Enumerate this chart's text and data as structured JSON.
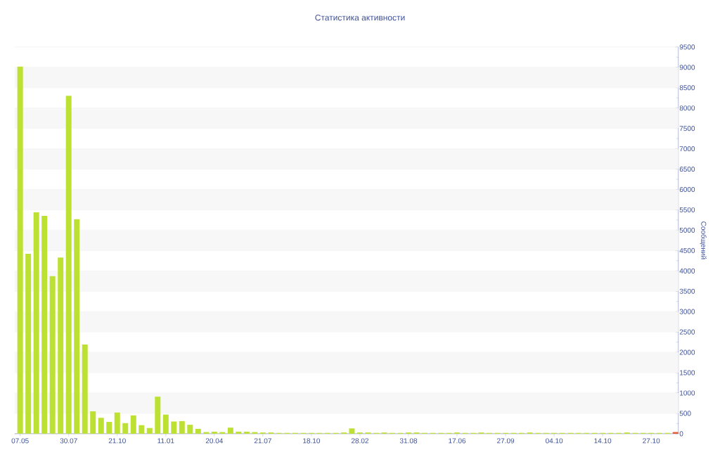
{
  "chart_data": {
    "type": "bar",
    "title": "Статистика активности",
    "ylabel": "Сообщений",
    "categories": [
      "07.05",
      null,
      null,
      null,
      null,
      null,
      "30.07",
      null,
      null,
      null,
      null,
      null,
      "21.10",
      null,
      null,
      null,
      null,
      null,
      "11.01",
      null,
      null,
      null,
      null,
      null,
      "20.04",
      null,
      null,
      null,
      null,
      null,
      "21.07",
      null,
      null,
      null,
      null,
      null,
      "18.10",
      null,
      null,
      null,
      null,
      null,
      "28.02",
      null,
      null,
      null,
      null,
      null,
      "31.08",
      null,
      null,
      null,
      null,
      null,
      "17.06",
      null,
      null,
      null,
      null,
      null,
      "27.09",
      null,
      null,
      null,
      null,
      null,
      "04.10",
      null,
      null,
      null,
      null,
      null,
      "14.10",
      null,
      null,
      null,
      null,
      null,
      "27.10",
      null,
      null,
      null
    ],
    "values": [
      9020,
      4420,
      5440,
      5350,
      3870,
      4330,
      8300,
      5270,
      2190,
      550,
      390,
      290,
      520,
      260,
      450,
      210,
      140,
      910,
      470,
      300,
      310,
      220,
      120,
      40,
      50,
      40,
      150,
      50,
      50,
      40,
      30,
      30,
      20,
      20,
      20,
      20,
      20,
      20,
      20,
      20,
      30,
      130,
      30,
      30,
      20,
      30,
      20,
      20,
      30,
      30,
      20,
      20,
      20,
      20,
      30,
      20,
      20,
      30,
      20,
      20,
      20,
      20,
      20,
      30,
      20,
      20,
      20,
      20,
      20,
      20,
      20,
      20,
      20,
      20,
      20,
      30,
      20,
      20,
      20,
      20,
      20,
      40
    ],
    "colors": [
      "#bde132",
      "#bde132",
      "#bde132",
      "#bde132",
      "#bde132",
      "#bde132",
      "#bde132",
      "#bde132",
      "#bde132",
      "#bde132",
      "#bde132",
      "#bde132",
      "#bde132",
      "#bde132",
      "#bde132",
      "#bde132",
      "#bde132",
      "#bde132",
      "#bde132",
      "#bde132",
      "#bde132",
      "#bde132",
      "#bde132",
      "#bde132",
      "#bde132",
      "#bde132",
      "#bde132",
      "#bde132",
      "#bde132",
      "#bde132",
      "#bde132",
      "#bde132",
      "#bde132",
      "#bde132",
      "#bde132",
      "#bde132",
      "#bde132",
      "#bde132",
      "#bde132",
      "#bde132",
      "#bde132",
      "#bde132",
      "#bde132",
      "#bde132",
      "#bde132",
      "#bde132",
      "#bde132",
      "#bde132",
      "#bde132",
      "#bde132",
      "#bde132",
      "#bde132",
      "#bde132",
      "#bde132",
      "#bde132",
      "#bde132",
      "#bde132",
      "#bde132",
      "#bde132",
      "#bde132",
      "#bde132",
      "#bde132",
      "#bde132",
      "#bde132",
      "#bde132",
      "#bde132",
      "#bde132",
      "#bde132",
      "#bde132",
      "#bde132",
      "#bde132",
      "#bde132",
      "#bde132",
      "#bde132",
      "#bde132",
      "#bde132",
      "#bde132",
      "#bde132",
      "#bde132",
      "#bde132",
      "#bde132",
      "#e8552c"
    ],
    "ylim": [
      0,
      9500
    ],
    "yticks": [
      0,
      500,
      1000,
      1500,
      2000,
      2500,
      3000,
      3500,
      4000,
      4500,
      5000,
      5500,
      6000,
      6500,
      7000,
      7500,
      8000,
      8500,
      9000,
      9500
    ],
    "grid": "y"
  }
}
